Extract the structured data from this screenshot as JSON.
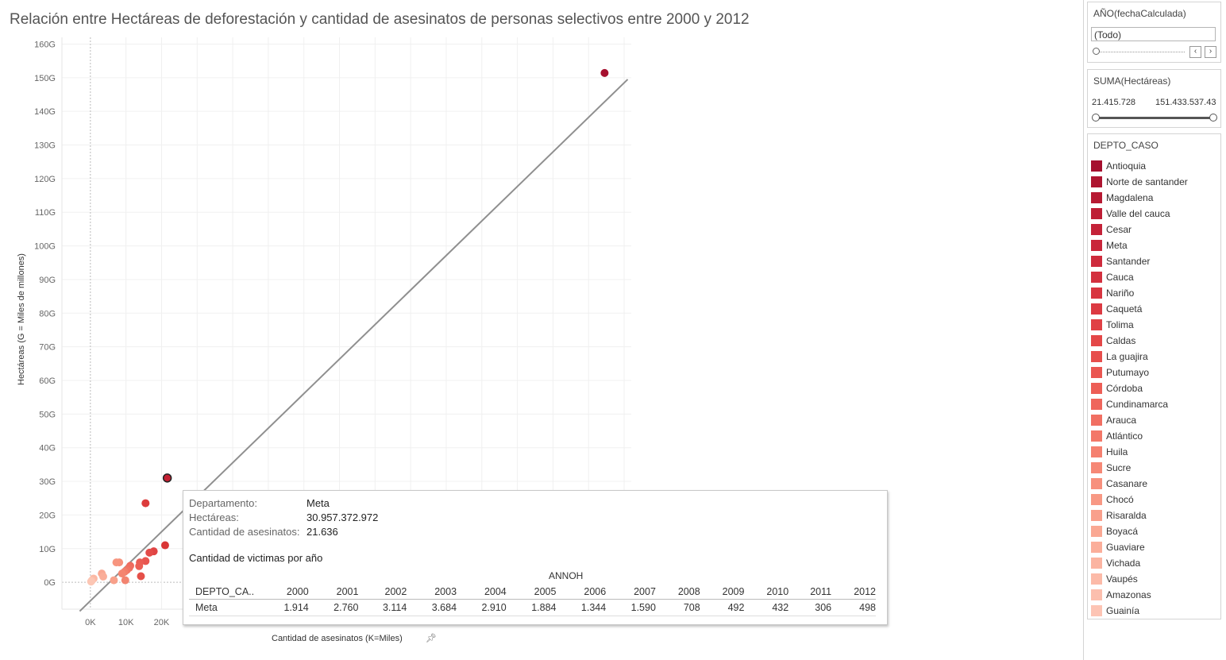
{
  "title": "Relación entre Hectáreas de deforestación y cantidad de asesinatos de personas selectivos entre 2000 y 2012",
  "chart_data": {
    "type": "scatter",
    "xlabel": "Cantidad de asesinatos (K=Miles)",
    "ylabel": "Hectáreas (G = Miles de millones)",
    "x_ticks": [
      "0K",
      "10K",
      "20K"
    ],
    "y_ticks": [
      "0G",
      "10G",
      "20G",
      "30G",
      "40G",
      "50G",
      "60G",
      "70G",
      "80G",
      "90G",
      "100G",
      "110G",
      "120G",
      "130G",
      "140G",
      "150G",
      "160G"
    ],
    "xlim": [
      -8,
      152
    ],
    "ylim": [
      -8,
      162
    ],
    "grid": true,
    "trend_line": {
      "x": [
        -3,
        151
      ],
      "y": [
        -8.6,
        149.5
      ]
    },
    "points": [
      {
        "x": 144.5,
        "y": 151.4,
        "color": "#a50f2e"
      },
      {
        "x": 21.6,
        "y": 31.0,
        "color": "#c42032",
        "selected": true
      },
      {
        "x": 15.5,
        "y": 23.5,
        "color": "#dc3c3c"
      },
      {
        "x": 21.0,
        "y": 11.0,
        "color": "#d93535"
      },
      {
        "x": 17.8,
        "y": 9.2,
        "color": "#e04444"
      },
      {
        "x": 16.6,
        "y": 8.8,
        "color": "#e34b48"
      },
      {
        "x": 15.5,
        "y": 6.3,
        "color": "#e85650"
      },
      {
        "x": 13.9,
        "y": 5.9,
        "color": "#ea5c54"
      },
      {
        "x": 13.7,
        "y": 4.8,
        "color": "#eb5f55"
      },
      {
        "x": 11.2,
        "y": 4.9,
        "color": "#ee6a5d"
      },
      {
        "x": 10.9,
        "y": 4.3,
        "color": "#ef6e60"
      },
      {
        "x": 10.2,
        "y": 3.6,
        "color": "#f07563"
      },
      {
        "x": 9.6,
        "y": 3.1,
        "color": "#f37e6a"
      },
      {
        "x": 8.9,
        "y": 2.6,
        "color": "#f48570"
      },
      {
        "x": 14.2,
        "y": 1.8,
        "color": "#e55049"
      },
      {
        "x": 8.1,
        "y": 5.9,
        "color": "#f6917b"
      },
      {
        "x": 7.3,
        "y": 5.9,
        "color": "#f7957f"
      },
      {
        "x": 9.8,
        "y": 0.6,
        "color": "#f28470"
      },
      {
        "x": 6.6,
        "y": 0.6,
        "color": "#f8a08a"
      },
      {
        "x": 3.2,
        "y": 2.6,
        "color": "#f9a893"
      },
      {
        "x": 3.6,
        "y": 1.7,
        "color": "#faae99"
      },
      {
        "x": 0.9,
        "y": 1.1,
        "color": "#fbb8a4"
      },
      {
        "x": 0.4,
        "y": 0.5,
        "color": "#fcc0ad"
      },
      {
        "x": 0.2,
        "y": 0.2,
        "color": "#fcc6b4"
      }
    ]
  },
  "tooltip": {
    "rows": [
      {
        "key": "Departamento:",
        "value": "Meta"
      },
      {
        "key": "Hectáreas:",
        "value": "30.957.372.972"
      },
      {
        "key": "Cantidad de asesinatos:",
        "value": "21.636"
      }
    ],
    "subtitle": "Cantidad de victimas por año",
    "column_header": "ANNOH",
    "table_headers": [
      "DEPTO_CA..",
      "2000",
      "2001",
      "2002",
      "2003",
      "2004",
      "2005",
      "2006",
      "2007",
      "2008",
      "2009",
      "2010",
      "2011",
      "2012"
    ],
    "table_row": [
      "Meta",
      "1.914",
      "2.760",
      "3.114",
      "3.684",
      "2.910",
      "1.884",
      "1.344",
      "1.590",
      "708",
      "492",
      "432",
      "306",
      "498"
    ]
  },
  "filters": {
    "year": {
      "title": "AÑO(fechaCalculada)",
      "value": "(Todo)",
      "prev_icon": "chevron-left-icon",
      "next_icon": "chevron-right-icon"
    },
    "sum": {
      "title": "SUMA(Hectáreas)",
      "min": "21.415.728",
      "max": "151.433.537.43"
    }
  },
  "legend": {
    "title": "DEPTO_CASO",
    "items": [
      {
        "label": "Antioquia",
        "color": "#a50f2e"
      },
      {
        "label": "Norte de santander",
        "color": "#ae1530"
      },
      {
        "label": "Magdalena",
        "color": "#b71a33"
      },
      {
        "label": "Valle del cauca",
        "color": "#be1e35"
      },
      {
        "label": "Cesar",
        "color": "#c42238"
      },
      {
        "label": "Meta",
        "color": "#c9263a"
      },
      {
        "label": "Santander",
        "color": "#ce2b3c"
      },
      {
        "label": "Cauca",
        "color": "#d3303e"
      },
      {
        "label": "Nariño",
        "color": "#d83540"
      },
      {
        "label": "Caquetá",
        "color": "#dc3a42"
      },
      {
        "label": "Tolima",
        "color": "#e04045"
      },
      {
        "label": "Caldas",
        "color": "#e44748"
      },
      {
        "label": "La guajira",
        "color": "#e74e4c"
      },
      {
        "label": "Putumayo",
        "color": "#ea5651"
      },
      {
        "label": "Córdoba",
        "color": "#ed5e56"
      },
      {
        "label": "Cundinamarca",
        "color": "#ef665c"
      },
      {
        "label": "Arauca",
        "color": "#f16f62"
      },
      {
        "label": "Atlántico",
        "color": "#f37868"
      },
      {
        "label": "Huila",
        "color": "#f5806f"
      },
      {
        "label": "Sucre",
        "color": "#f68876"
      },
      {
        "label": "Casanare",
        "color": "#f7907d"
      },
      {
        "label": "Chocó",
        "color": "#f89884"
      },
      {
        "label": "Risaralda",
        "color": "#f9a08c"
      },
      {
        "label": "Boyacá",
        "color": "#faa893"
      },
      {
        "label": "Guaviare",
        "color": "#fbae9a"
      },
      {
        "label": "Vichada",
        "color": "#fbb4a1"
      },
      {
        "label": "Vaupés",
        "color": "#fcbaa8"
      },
      {
        "label": "Amazonas",
        "color": "#fcbfae"
      },
      {
        "label": "Guainía",
        "color": "#fdc4b4"
      }
    ]
  }
}
